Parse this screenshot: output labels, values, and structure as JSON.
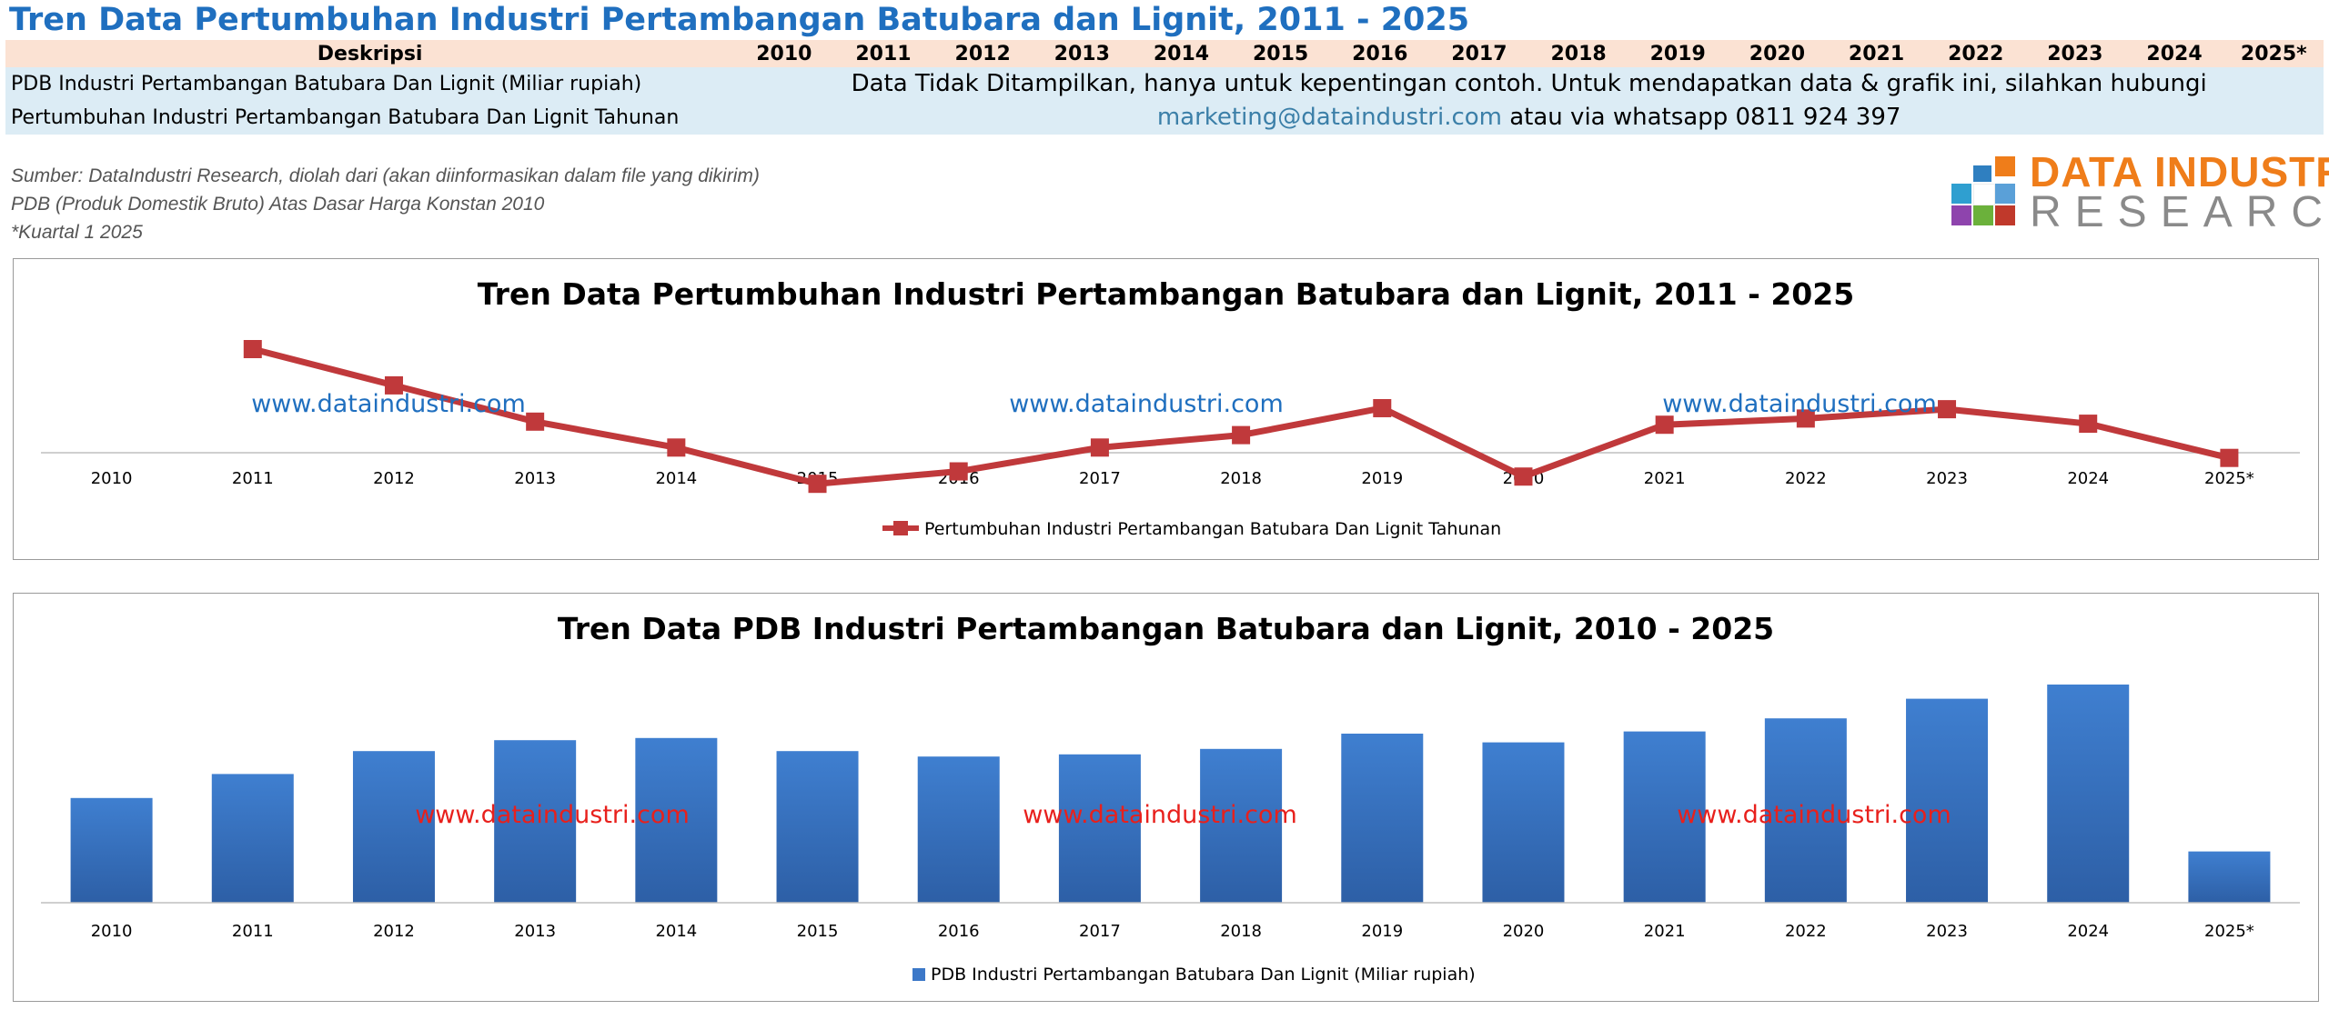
{
  "page_title": "Tren Data Pertumbuhan Industri Pertambangan Batubara dan Lignit, 2011 - 2025",
  "table": {
    "header_label": "Deskripsi",
    "years": [
      "2010",
      "2011",
      "2012",
      "2013",
      "2014",
      "2015",
      "2016",
      "2017",
      "2018",
      "2019",
      "2020",
      "2021",
      "2022",
      "2023",
      "2024",
      "2025*"
    ],
    "rows": [
      "PDB Industri Pertambangan Batubara Dan Lignit (Miliar rupiah)",
      "Pertumbuhan Industri Pertambangan Batubara Dan Lignit Tahunan"
    ],
    "message_part1": "Data Tidak Ditampilkan, hanya untuk kepentingan contoh. Untuk mendapatkan data & grafik  ini, silahkan hubungi",
    "message_link": "marketing@dataindustri.com",
    "message_part2": " atau via whatsapp 0811 924 397"
  },
  "notes": [
    "Sumber: DataIndustri Research, diolah dari (akan diinformasikan dalam file yang dikirim)",
    "PDB (Produk Domestik Bruto) Atas Dasar Harga Konstan 2010",
    "*Kuartal 1 2025"
  ],
  "logo": {
    "line1": "DATA INDUSTRI",
    "line2": "RESEARCH"
  },
  "colors": {
    "title_blue": "#1f6fbf",
    "line_red": "#c0393b",
    "bar_blue": "#3c78c8",
    "watermark_blue": "#1f6fbf",
    "watermark_red": "#e8201c",
    "header_bg": "#fbe2d3",
    "row_bg": "#dcecf5"
  },
  "watermark_text": "www.dataindustri.com",
  "chart_data": [
    {
      "type": "line",
      "title": "Tren Data Pertumbuhan Industri Pertambangan Batubara dan Lignit, 2011 - 2025",
      "categories": [
        "2010",
        "2011",
        "2012",
        "2013",
        "2014",
        "2015",
        "2016",
        "2017",
        "2018",
        "2019",
        "2020",
        "2021",
        "2022",
        "2023",
        "2024",
        "2025*"
      ],
      "series": [
        {
          "name": "Pertumbuhan Industri Pertambangan Batubara Dan Lignit Tahunan",
          "values": [
            null,
            10,
            6.5,
            3,
            0.5,
            -3,
            -1.8,
            0.5,
            1.7,
            4.3,
            -2.3,
            2.7,
            3.3,
            4.2,
            2.8,
            -0.5
          ]
        }
      ],
      "ylim": [
        -4,
        12
      ],
      "grid": false,
      "legend": "bottom"
    },
    {
      "type": "bar",
      "title": "Tren Data PDB Industri Pertambangan Batubara dan Lignit, 2010 - 2025",
      "categories": [
        "2010",
        "2011",
        "2012",
        "2013",
        "2014",
        "2015",
        "2016",
        "2017",
        "2018",
        "2019",
        "2020",
        "2021",
        "2022",
        "2023",
        "2024",
        "2025*"
      ],
      "series": [
        {
          "name": "PDB Industri Pertambangan Batubara Dan Lignit (Miliar rupiah)",
          "values": [
            48,
            59,
            69.5,
            74.5,
            75.5,
            69.5,
            67,
            68,
            70.5,
            77.5,
            73.5,
            78.5,
            84.5,
            93.5,
            100,
            23.5
          ]
        }
      ],
      "ylim": [
        0,
        100
      ],
      "grid": false,
      "legend": "bottom"
    }
  ]
}
